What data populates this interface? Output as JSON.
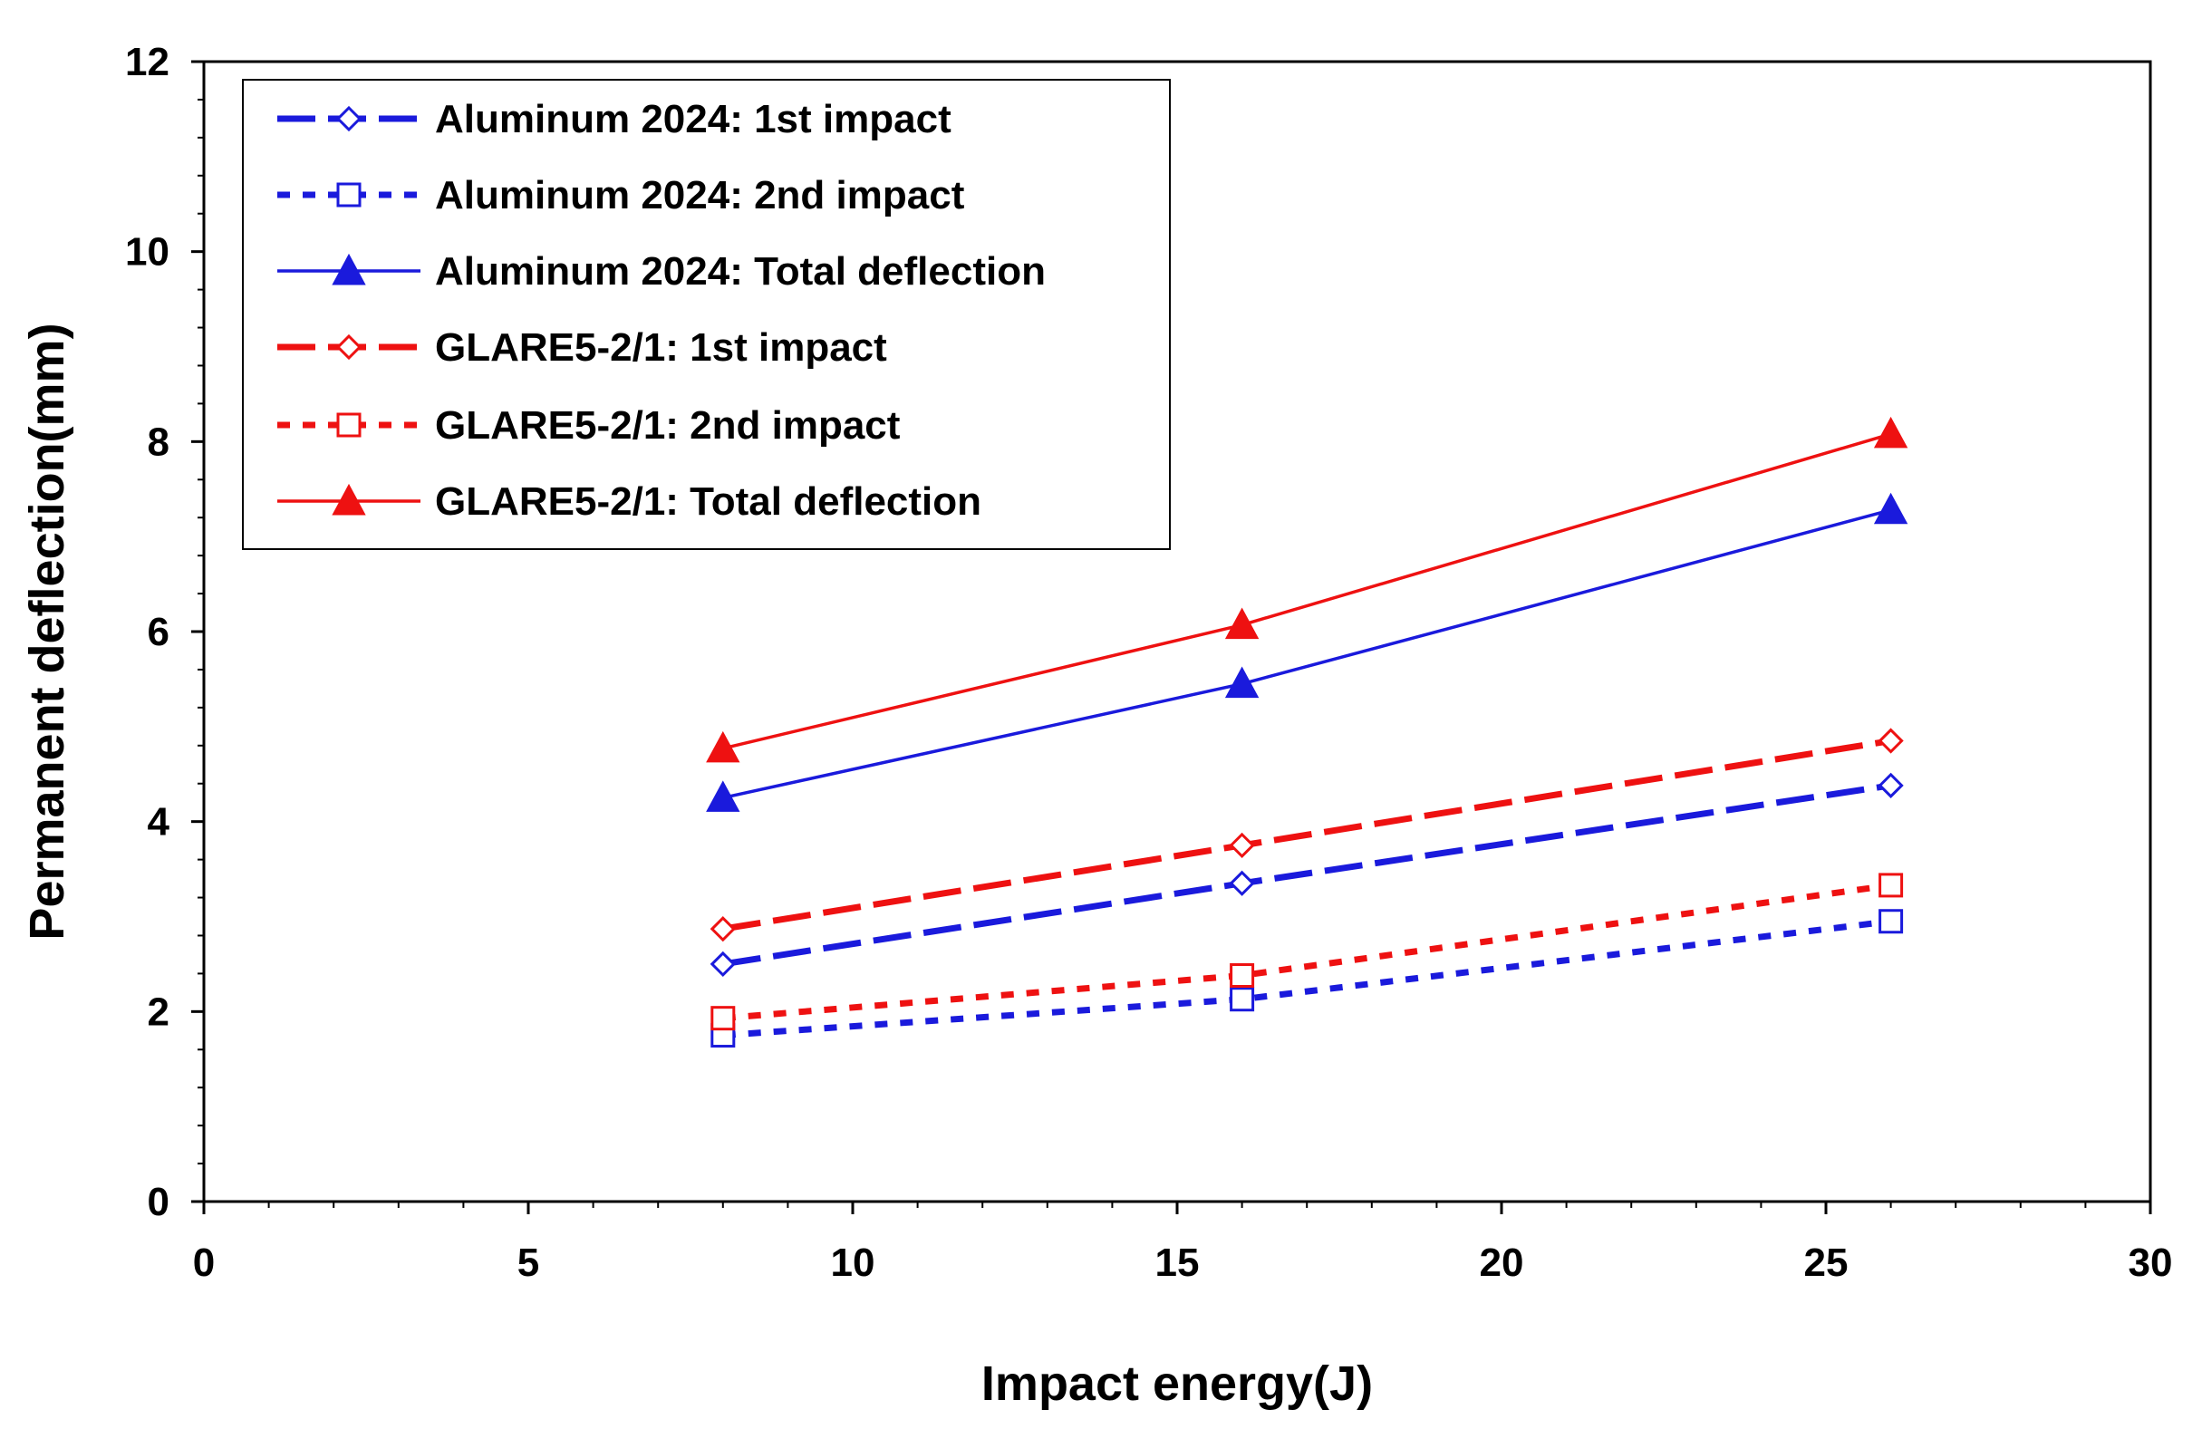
{
  "chart_data": {
    "type": "line",
    "title": "",
    "xlabel": "Impact energy(J)",
    "ylabel": "Permanent deflection(mm)",
    "xlim": [
      0,
      30
    ],
    "ylim": [
      0,
      12
    ],
    "xticks": [
      0,
      5,
      10,
      15,
      20,
      25,
      30
    ],
    "yticks": [
      0,
      2,
      4,
      6,
      8,
      10,
      12
    ],
    "x_minor_step": 1,
    "y_minor_step": 0.4,
    "legend_position": "top-left",
    "grid": false,
    "series": [
      {
        "name": "Aluminum 2024: 1st impact",
        "color": "#1a1adc",
        "line": "longdash",
        "marker": "diamond",
        "x": [
          8,
          16,
          26
        ],
        "values": [
          2.5,
          3.35,
          4.38
        ]
      },
      {
        "name": "Aluminum 2024: 2nd impact",
        "color": "#1a1adc",
        "line": "dotted",
        "marker": "square",
        "x": [
          8,
          16,
          26
        ],
        "values": [
          1.75,
          2.13,
          2.95
        ]
      },
      {
        "name": "Aluminum 2024: Total deflection",
        "color": "#1a1adc",
        "line": "solid",
        "marker": "triangle",
        "x": [
          8,
          16,
          26
        ],
        "values": [
          4.25,
          5.45,
          7.28
        ]
      },
      {
        "name": "GLARE5-2/1: 1st impact",
        "color": "#ee1111",
        "line": "longdash",
        "marker": "diamond",
        "x": [
          8,
          16,
          26
        ],
        "values": [
          2.87,
          3.75,
          4.85
        ]
      },
      {
        "name": "GLARE5-2/1: 2nd impact",
        "color": "#ee1111",
        "line": "dotted",
        "marker": "square",
        "x": [
          8,
          16,
          26
        ],
        "values": [
          1.93,
          2.38,
          3.33
        ]
      },
      {
        "name": "GLARE5-2/1: Total deflection",
        "color": "#ee1111",
        "line": "solid",
        "marker": "triangle",
        "x": [
          8,
          16,
          26
        ],
        "values": [
          4.77,
          6.07,
          8.08
        ]
      }
    ]
  }
}
